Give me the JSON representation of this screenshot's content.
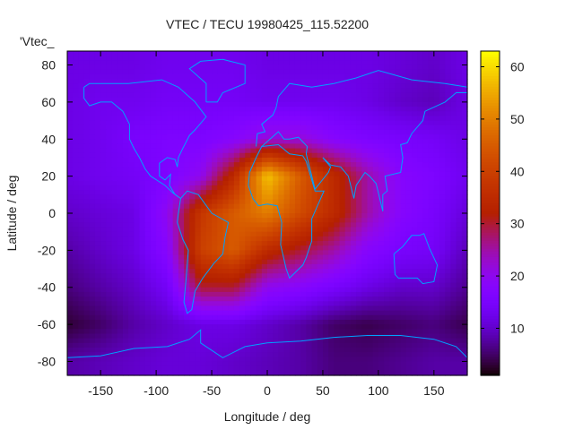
{
  "chart_data": {
    "type": "heatmap",
    "title": "VTEC / TECU 19980425_115.52200",
    "xlabel": "Longitude / deg",
    "ylabel": "Latitude / deg",
    "corner_label": "'Vtec_",
    "xlim": [
      -180,
      180
    ],
    "ylim": [
      -87.5,
      87.5
    ],
    "xticks": [
      "-150",
      "-100",
      "-50",
      "0",
      "50",
      "100",
      "150"
    ],
    "xtick_values": [
      -150,
      -100,
      -50,
      0,
      50,
      100,
      150
    ],
    "yticks": [
      "-80",
      "-60",
      "-40",
      "-20",
      "0",
      "20",
      "40",
      "60",
      "80"
    ],
    "ytick_values": [
      -80,
      -60,
      -40,
      -20,
      0,
      20,
      40,
      60,
      80
    ],
    "colorbar": {
      "range": [
        1,
        63
      ],
      "ticks": [
        "10",
        "20",
        "30",
        "40",
        "50",
        "60"
      ],
      "tick_values": [
        10,
        20,
        30,
        40,
        50,
        60
      ]
    },
    "grid_lons": [
      -180,
      -150,
      -120,
      -90,
      -60,
      -30,
      0,
      30,
      60,
      90,
      120,
      150,
      180
    ],
    "grid_lats": [
      80,
      60,
      40,
      20,
      0,
      -20,
      -40,
      -60,
      -80
    ],
    "values": [
      [
        12,
        12,
        12,
        13,
        13,
        13,
        12,
        12,
        12,
        12,
        11,
        10,
        12
      ],
      [
        12,
        13,
        13,
        14,
        14,
        14,
        13,
        13,
        13,
        12,
        10,
        9,
        12
      ],
      [
        12,
        13,
        15,
        16,
        16,
        18,
        22,
        22,
        18,
        16,
        15,
        14,
        12
      ],
      [
        12,
        13,
        14,
        16,
        20,
        35,
        58,
        45,
        35,
        25,
        18,
        16,
        13
      ],
      [
        10,
        11,
        12,
        20,
        38,
        45,
        50,
        42,
        35,
        25,
        18,
        15,
        11
      ],
      [
        8,
        10,
        12,
        18,
        40,
        45,
        35,
        30,
        25,
        18,
        15,
        14,
        9
      ],
      [
        6,
        8,
        10,
        14,
        30,
        30,
        20,
        18,
        15,
        12,
        10,
        10,
        7
      ],
      [
        3,
        5,
        8,
        10,
        12,
        12,
        10,
        8,
        5,
        4,
        5,
        6,
        4
      ],
      [
        8,
        9,
        10,
        11,
        11,
        10,
        9,
        8,
        6,
        6,
        7,
        8,
        8
      ]
    ],
    "coastline_color": "#00a0ff"
  }
}
